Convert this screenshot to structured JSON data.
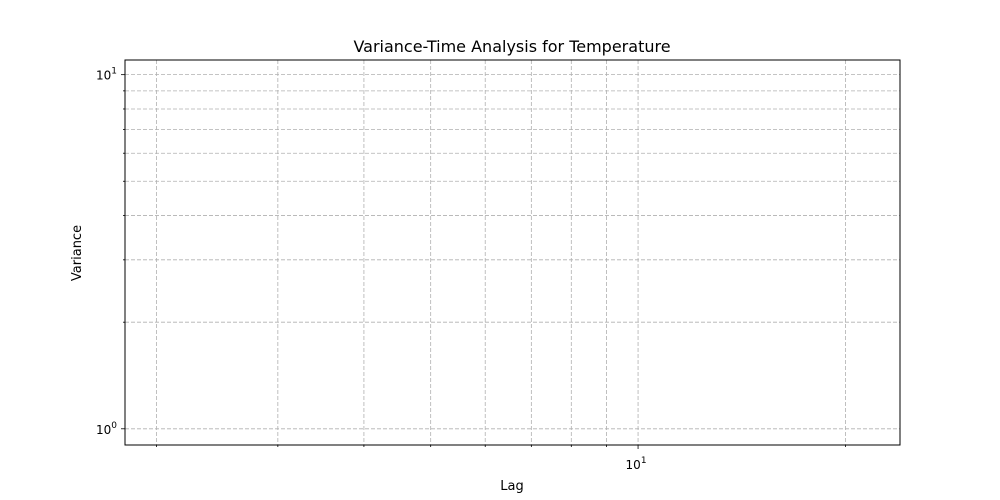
{
  "chart_data": {
    "type": "line",
    "title": "Variance-Time Analysis for Temperature",
    "xlabel": "Lag",
    "ylabel": "Variance",
    "xscale": "log",
    "yscale": "log",
    "xlim": [
      1.8,
      24
    ],
    "ylim": [
      0.9,
      11
    ],
    "grid": true,
    "grid_style": "dashed",
    "x_major_ticks": [
      {
        "value": 10,
        "label_base": "10",
        "label_exp": "1"
      }
    ],
    "x_minor_ticks": [
      2,
      3,
      4,
      5,
      6,
      7,
      8,
      9,
      20
    ],
    "y_major_ticks": [
      {
        "value": 1,
        "label_base": "10",
        "label_exp": "0"
      },
      {
        "value": 10,
        "label_base": "10",
        "label_exp": "1"
      }
    ],
    "y_minor_ticks": [
      2,
      3,
      4,
      5,
      6,
      7,
      8,
      9
    ],
    "series": []
  },
  "colors": {
    "grid": "#b0b0b0",
    "axes": "#000000",
    "background": "#ffffff"
  }
}
